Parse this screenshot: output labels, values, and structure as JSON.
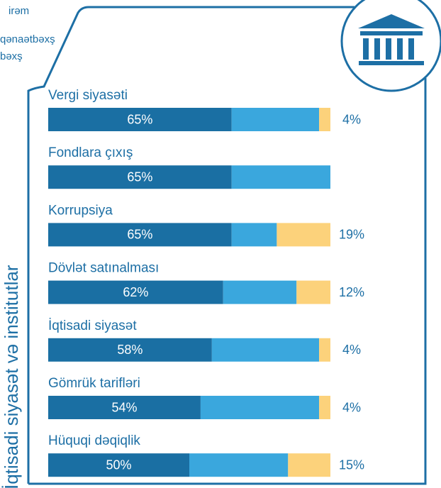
{
  "chart_data": {
    "type": "stacked-bar-horizontal",
    "y_axis_label": "İqtisadi siyasət və institutlar",
    "categories": [
      "Vergi siyasəti",
      "Fondlara çıxış",
      "Korrupsiya",
      "Dövlət satınalması",
      "İqtisadi siyasət",
      "Gömrük tarifləri",
      "Hüquqi dəqiqlik"
    ],
    "xlim": [
      0,
      100
    ],
    "series": [
      {
        "name": "irəm",
        "color": "#1a6fa3",
        "values": [
          65,
          65,
          65,
          62,
          58,
          54,
          50
        ],
        "value_labels": [
          "65%",
          "65%",
          "65%",
          "62%",
          "58%",
          "54%",
          "50%"
        ]
      },
      {
        "name": "qənaətbəxş",
        "color": "#3aa7dd",
        "values": [
          31,
          35,
          16,
          26,
          38,
          42,
          35
        ]
      },
      {
        "name": "bəxş",
        "color": "#fcd27b",
        "values": [
          4,
          null,
          19,
          12,
          4,
          4,
          15
        ],
        "value_labels": [
          "4%",
          null,
          "19%",
          "12%",
          "4%",
          "4%",
          "15%"
        ]
      }
    ]
  }
}
